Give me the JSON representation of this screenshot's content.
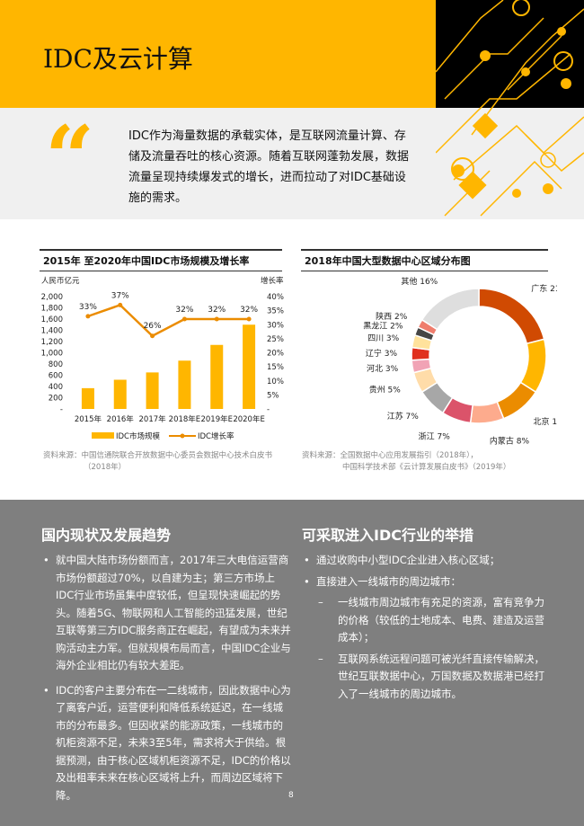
{
  "header": {
    "title": "IDC及云计算"
  },
  "quote": {
    "mark": "“",
    "text": "IDC作为海量数据的承载实体，是互联网流量计算、存储及流量吞吐的核心资源。随着互联网蓬勃发展，数据流量呈现持续爆发式的增长，进而拉动了对IDC基础设施的需求。"
  },
  "colors": {
    "accent": "#ffb600",
    "dark": "#000000",
    "band": "#7f7f7f",
    "line": "#eb8c00"
  },
  "chart_data": [
    {
      "type": "bar+line",
      "title": "2015年 至2020年中国IDC市场规模及增长率",
      "ylabel": "人民币亿元",
      "y2label": "增长率",
      "categories": [
        "2015年",
        "2016年",
        "2017年",
        "2018年E",
        "2019年E",
        "2020年E"
      ],
      "series": [
        {
          "name": "IDC市场规模",
          "type": "bar",
          "values": [
            370,
            520,
            650,
            860,
            1140,
            1500
          ]
        },
        {
          "name": "IDC增长率",
          "type": "line",
          "values": [
            33,
            37,
            26,
            32,
            32,
            32
          ],
          "labels": [
            "33%",
            "37%",
            "26%",
            "32%",
            "32%",
            "32%"
          ]
        }
      ],
      "yticks": [
        "-",
        "200",
        "400",
        "600",
        "800",
        "1,000",
        "1,200",
        "1,400",
        "1,600",
        "1,800",
        "2,000"
      ],
      "y2ticks": [
        "-",
        "5%",
        "10%",
        "15%",
        "20%",
        "25%",
        "30%",
        "35%",
        "40%"
      ],
      "ylim": [
        0,
        2000
      ],
      "y2lim": [
        0,
        40
      ],
      "legend": "bottom",
      "source": [
        "资料来源：中国信通院联合开放数据中心委员会数据中心技术白皮书",
        "（2018年）"
      ]
    },
    {
      "type": "pie",
      "title": "2018年中国大型数据中心区域分布图",
      "donut": true,
      "slices": [
        {
          "label": "广东 21%",
          "value": 21,
          "color": "#d04a02"
        },
        {
          "label": "上海 13%",
          "value": 13,
          "color": "#ffb600"
        },
        {
          "label": "北京 10%",
          "value": 10,
          "color": "#eb8c00"
        },
        {
          "label": "内蒙古 8%",
          "value": 8,
          "color": "#fdab8d"
        },
        {
          "label": "浙江 7%",
          "value": 7,
          "color": "#db536a"
        },
        {
          "label": "江苏 7%",
          "value": 7,
          "color": "#a7a7a7"
        },
        {
          "label": "贵州 5%",
          "value": 5,
          "color": "#ffdca9"
        },
        {
          "label": "河北 3%",
          "value": 3,
          "color": "#f1a3b5"
        },
        {
          "label": "辽宁 3%",
          "value": 3,
          "color": "#e0301e"
        },
        {
          "label": "四川 3%",
          "value": 3,
          "color": "#ffe29c"
        },
        {
          "label": "黑龙江 2%",
          "value": 2,
          "color": "#464646"
        },
        {
          "label": "陕西 2%",
          "value": 2,
          "color": "#ef7d6d"
        },
        {
          "label": "其他 16%",
          "value": 16,
          "color": "#dedede"
        }
      ],
      "source": [
        "资料来源：全国数据中心应用发展指引（2018年），",
        "中国科学技术部《云计算发展白皮书》（2019年）"
      ]
    }
  ],
  "left": {
    "heading": "国内现状及发展趋势",
    "bullets": [
      "就中国大陆市场份额而言，2017年三大电信运营商市场份额超过70%，以自建为主；第三方市场上IDC行业市场虽集中度较低，但呈现快速崛起的势头。随着5G、物联网和人工智能的迅猛发展，世纪互联等第三方IDC服务商正在崛起，有望成为未来并购活动主力军。但就规模布局而言，中国IDC企业与海外企业相比仍有较大差距。",
      "IDC的客户主要分布在一二线城市，因此数据中心为了离客户近，运营便利和降低系统延迟，在一线城市的分布最多。但因收紧的能源政策，一线城市的机柜资源不足，未来3至5年，需求将大于供给。根据预测，由于核心区域机柜资源不足，IDC的价格以及出租率未来在核心区域将上升，而周边区域将下降。"
    ]
  },
  "right": {
    "heading": "可采取进入IDC行业的举措",
    "bullets": [
      "通过收购中小型IDC企业进入核心区域；",
      "直接进入一线城市的周边城市："
    ],
    "subs": [
      "一线城市周边城市有充足的资源，富有竞争力的价格（较低的土地成本、电费、建造及运营成本）；",
      "互联网系统远程问题可被光纤直接传输解决，世纪互联数据中心，万国数据及数据港已经打入了一线城市的周边城市。"
    ]
  },
  "page_number": "8"
}
